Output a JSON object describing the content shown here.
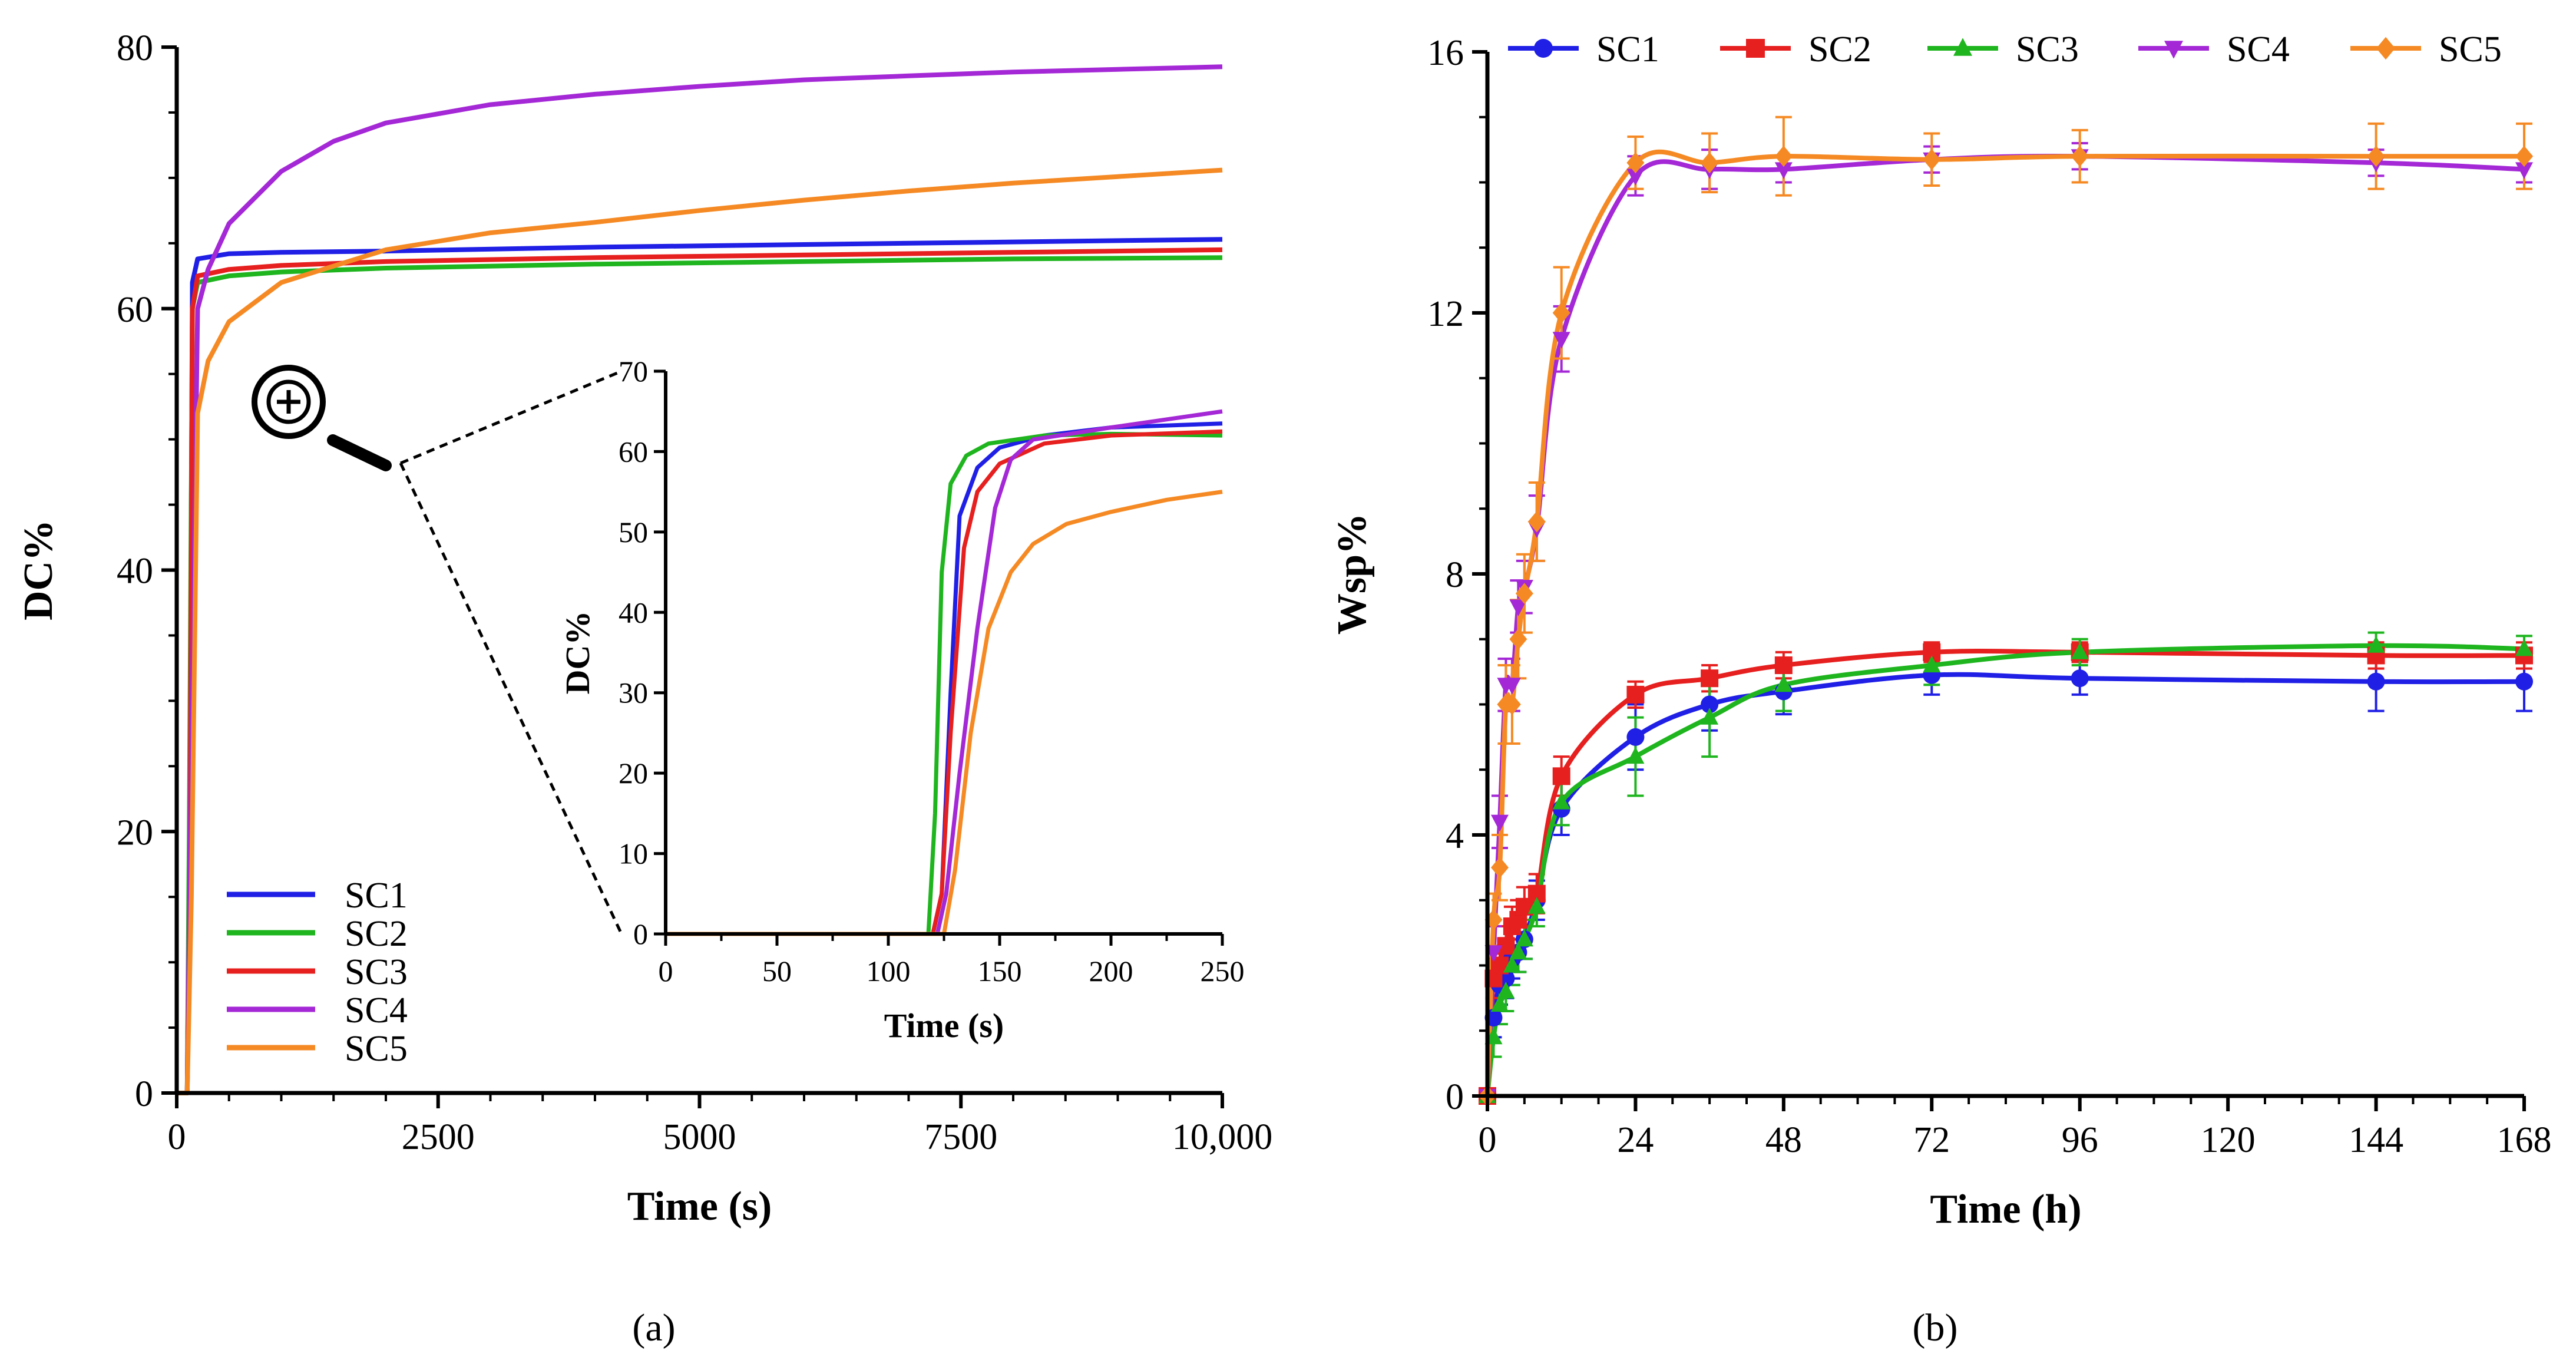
{
  "chart_data": [
    {
      "type": "line",
      "panel_label": "(a)",
      "xlabel": "Time (s)",
      "ylabel": "DC%",
      "xlim": [
        0,
        10000
      ],
      "ylim": [
        0,
        80
      ],
      "xticks": [
        0,
        2500,
        5000,
        7500,
        10000
      ],
      "xtick_labels": [
        "0",
        "2500",
        "5000",
        "7500",
        "10,000"
      ],
      "yticks": [
        0,
        20,
        40,
        60,
        80
      ],
      "ytick_labels": [
        "0",
        "20",
        "40",
        "60",
        "80"
      ],
      "legend_position": "bottom-left",
      "series": [
        {
          "name": "SC1",
          "color": "#1f1fe6",
          "x": [
            0,
            100,
            125,
            150,
            200,
            500,
            1000,
            2000,
            4000,
            6000,
            8000,
            10000
          ],
          "y": [
            0,
            0,
            20,
            62,
            63.8,
            64.2,
            64.3,
            64.4,
            64.7,
            64.9,
            65.1,
            65.3
          ]
        },
        {
          "name": "SC2",
          "color": "#1fb51f",
          "x": [
            0,
            100,
            120,
            150,
            200,
            500,
            1000,
            2000,
            4000,
            6000,
            8000,
            10000
          ],
          "y": [
            0,
            0,
            20,
            60,
            62.0,
            62.5,
            62.8,
            63.1,
            63.4,
            63.6,
            63.8,
            63.9
          ]
        },
        {
          "name": "SC3",
          "color": "#e61f1f",
          "x": [
            0,
            100,
            125,
            150,
            200,
            500,
            1000,
            2000,
            4000,
            6000,
            8000,
            10000
          ],
          "y": [
            0,
            0,
            15,
            60,
            62.5,
            63.0,
            63.3,
            63.6,
            63.9,
            64.1,
            64.3,
            64.5
          ]
        },
        {
          "name": "SC4",
          "color": "#a428d6",
          "x": [
            0,
            100,
            130,
            200,
            300,
            500,
            1000,
            1500,
            2000,
            3000,
            4000,
            5000,
            6000,
            7000,
            8000,
            9000,
            10000
          ],
          "y": [
            0,
            0,
            20,
            60,
            63,
            66.5,
            70.5,
            72.8,
            74.2,
            75.6,
            76.4,
            77.0,
            77.5,
            77.8,
            78.1,
            78.3,
            78.5
          ]
        },
        {
          "name": "SC5",
          "color": "#f58a24",
          "x": [
            0,
            100,
            140,
            200,
            300,
            500,
            1000,
            2000,
            3000,
            4000,
            5000,
            6000,
            7000,
            8000,
            9000,
            10000
          ],
          "y": [
            0,
            0,
            15,
            52,
            56,
            59,
            62,
            64.5,
            65.8,
            66.6,
            67.5,
            68.3,
            69.0,
            69.6,
            70.1,
            70.6
          ]
        }
      ],
      "inset": {
        "xlabel": "Time (s)",
        "ylabel": "DC%",
        "xlim": [
          0,
          250
        ],
        "ylim": [
          0,
          70
        ],
        "xticks": [
          0,
          50,
          100,
          150,
          200,
          250
        ],
        "yticks": [
          0,
          10,
          20,
          30,
          40,
          50,
          60,
          70
        ],
        "series": [
          {
            "name": "SC1",
            "color": "#1f1fe6",
            "x": [
              0,
              120,
              124,
              128,
              132,
              140,
              150,
              170,
              200,
              250
            ],
            "y": [
              0,
              0,
              5,
              30,
              52,
              58,
              60.5,
              62,
              63,
              63.5
            ]
          },
          {
            "name": "SC2",
            "color": "#1fb51f",
            "x": [
              0,
              118,
              121,
              124,
              128,
              135,
              145,
              170,
              200,
              250
            ],
            "y": [
              0,
              0,
              15,
              45,
              56,
              59.5,
              61,
              62,
              62.2,
              62.0
            ]
          },
          {
            "name": "SC3",
            "color": "#e61f1f",
            "x": [
              0,
              120,
              124,
              128,
              134,
              140,
              150,
              170,
              200,
              250
            ],
            "y": [
              0,
              0,
              5,
              25,
              48,
              55,
              58.5,
              61,
              62,
              62.5
            ]
          },
          {
            "name": "SC4",
            "color": "#a428d6",
            "x": [
              0,
              122,
              126,
              132,
              140,
              148,
              155,
              165,
              200,
              250
            ],
            "y": [
              0,
              0,
              5,
              20,
              38,
              53,
              59,
              61.5,
              63,
              65
            ]
          },
          {
            "name": "SC5",
            "color": "#f58a24",
            "x": [
              0,
              125,
              130,
              137,
              145,
              155,
              165,
              180,
              200,
              225,
              250
            ],
            "y": [
              0,
              0,
              8,
              25,
              38,
              45,
              48.5,
              51,
              52.5,
              54,
              55
            ]
          }
        ]
      }
    },
    {
      "type": "line",
      "panel_label": "(b)",
      "xlabel": "Time (h)",
      "ylabel": "Wsp%",
      "xlim": [
        0,
        168
      ],
      "ylim": [
        0,
        16
      ],
      "xticks": [
        0,
        24,
        48,
        72,
        96,
        120,
        144,
        168
      ],
      "yticks": [
        0,
        4,
        8,
        12,
        16
      ],
      "legend_position": "top",
      "series": [
        {
          "name": "SC1",
          "color": "#1f1fe6",
          "marker": "circle",
          "x": [
            0,
            1,
            2,
            3,
            4,
            5,
            6,
            8,
            12,
            24,
            36,
            48,
            72,
            96,
            144,
            168
          ],
          "y": [
            0,
            1.2,
            1.7,
            1.8,
            2.1,
            2.2,
            2.4,
            3.0,
            4.4,
            5.5,
            6.0,
            6.2,
            6.45,
            6.4,
            6.35,
            6.35
          ],
          "err": [
            0,
            0.3,
            0.3,
            0.3,
            0.3,
            0.3,
            0.3,
            0.3,
            0.4,
            0.5,
            0.4,
            0.35,
            0.3,
            0.25,
            0.45,
            0.45
          ]
        },
        {
          "name": "SC2",
          "color": "#e61f1f",
          "marker": "square",
          "x": [
            0,
            1,
            2,
            3,
            4,
            5,
            6,
            8,
            12,
            24,
            36,
            48,
            72,
            96,
            144,
            168
          ],
          "y": [
            0,
            1.8,
            2.0,
            2.3,
            2.6,
            2.7,
            2.9,
            3.1,
            4.9,
            6.15,
            6.4,
            6.6,
            6.8,
            6.8,
            6.75,
            6.75
          ],
          "err": [
            0,
            0.3,
            0.3,
            0.3,
            0.3,
            0.3,
            0.3,
            0.3,
            0.3,
            0.2,
            0.2,
            0.2,
            0.15,
            0.15,
            0.2,
            0.2
          ]
        },
        {
          "name": "SC3",
          "color": "#1fb51f",
          "marker": "triangle-up",
          "x": [
            0,
            1,
            2,
            3,
            4,
            5,
            6,
            8,
            12,
            24,
            36,
            48,
            72,
            96,
            144,
            168
          ],
          "y": [
            0,
            0.9,
            1.4,
            1.6,
            2.0,
            2.2,
            2.4,
            2.9,
            4.5,
            5.2,
            5.8,
            6.3,
            6.6,
            6.8,
            6.9,
            6.85
          ],
          "err": [
            0,
            0.3,
            0.3,
            0.3,
            0.3,
            0.3,
            0.3,
            0.3,
            0.35,
            0.6,
            0.6,
            0.4,
            0.3,
            0.2,
            0.2,
            0.2
          ]
        },
        {
          "name": "SC4",
          "color": "#a428d6",
          "marker": "triangle-down",
          "x": [
            0,
            1,
            2,
            3,
            4,
            5,
            6,
            8,
            12,
            24,
            36,
            48,
            72,
            96,
            144,
            168
          ],
          "y": [
            0,
            2.2,
            4.2,
            6.3,
            6.3,
            7.5,
            7.8,
            8.7,
            11.6,
            14.1,
            14.2,
            14.2,
            14.35,
            14.4,
            14.3,
            14.2
          ],
          "err": [
            0,
            0.4,
            0.4,
            0.4,
            0.4,
            0.4,
            0.4,
            0.5,
            0.5,
            0.3,
            0.3,
            0.2,
            0.2,
            0.2,
            0.2,
            0.2
          ]
        },
        {
          "name": "SC5",
          "color": "#f58a24",
          "marker": "diamond",
          "x": [
            0,
            1,
            2,
            3,
            4,
            5,
            6,
            8,
            12,
            24,
            36,
            48,
            72,
            96,
            144,
            168
          ],
          "y": [
            0,
            2.7,
            3.5,
            6.0,
            6.0,
            7.0,
            7.7,
            8.8,
            12.0,
            14.3,
            14.3,
            14.4,
            14.35,
            14.4,
            14.4,
            14.4
          ],
          "err": [
            0,
            0.4,
            0.5,
            0.6,
            0.6,
            0.6,
            0.6,
            0.6,
            0.7,
            0.4,
            0.45,
            0.6,
            0.4,
            0.4,
            0.5,
            0.5
          ]
        }
      ]
    }
  ]
}
